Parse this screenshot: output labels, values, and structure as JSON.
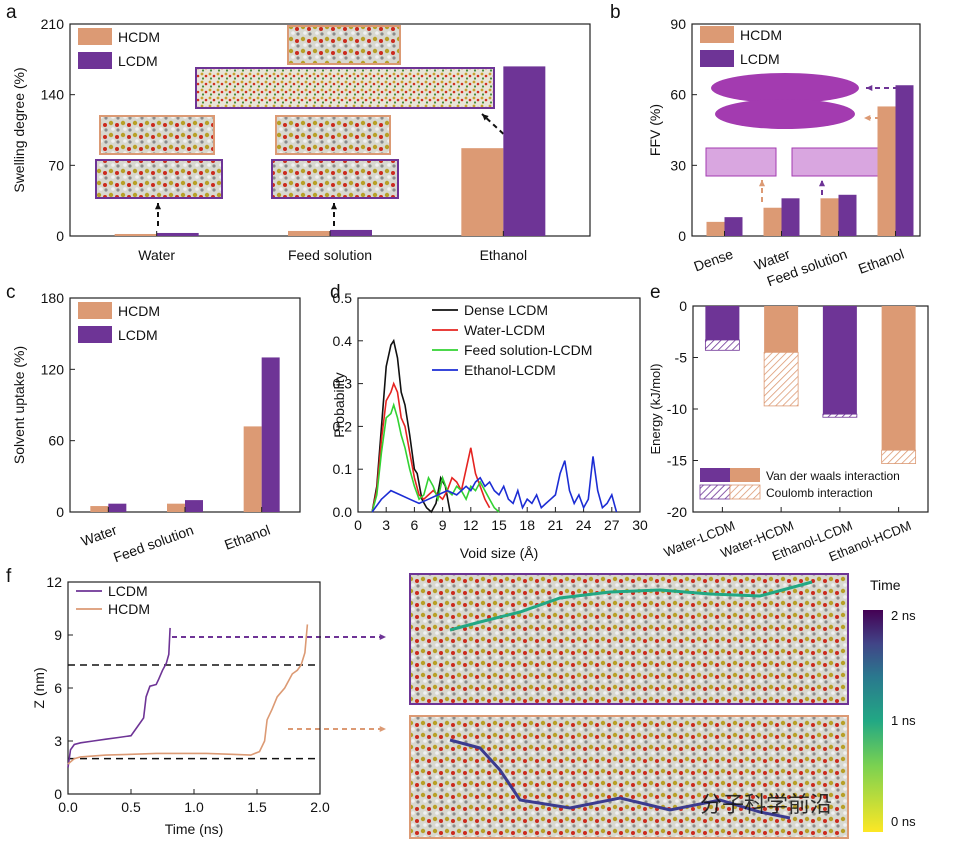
{
  "colors": {
    "hcdm": "#dc9a74",
    "lcdm": "#6e3496",
    "dense": "#111111",
    "water": "#e52421",
    "feed": "#32d232",
    "ethanol": "#1c2dd4"
  },
  "chart_data": [
    {
      "id": "a",
      "type": "bar",
      "ylabel": "Swelling degree (%)",
      "yticks": [
        "0",
        "70",
        "140",
        "210"
      ],
      "ylim": [
        0,
        210
      ],
      "categories": [
        "Water",
        "Feed solution",
        "Ethanol"
      ],
      "series": [
        {
          "name": "HCDM",
          "values": [
            2,
            5,
            87
          ]
        },
        {
          "name": "LCDM",
          "values": [
            3,
            6,
            168
          ]
        }
      ],
      "legend": [
        "HCDM",
        "LCDM"
      ]
    },
    {
      "id": "b",
      "type": "bar",
      "ylabel": "FFV (%)",
      "yticks": [
        "0",
        "30",
        "60",
        "90"
      ],
      "ylim": [
        0,
        90
      ],
      "categories": [
        "Dense",
        "Water",
        "Feed solution",
        "Ethanol"
      ],
      "series": [
        {
          "name": "HCDM",
          "values": [
            6,
            12,
            16,
            55
          ]
        },
        {
          "name": "LCDM",
          "values": [
            8,
            16,
            17.5,
            64
          ]
        }
      ],
      "legend": [
        "HCDM",
        "LCDM"
      ]
    },
    {
      "id": "c",
      "type": "bar",
      "ylabel": "Solvent uptake (%)",
      "yticks": [
        "0",
        "60",
        "120",
        "180"
      ],
      "ylim": [
        0,
        180
      ],
      "categories": [
        "Water",
        "Feed solution",
        "Ethanol"
      ],
      "series": [
        {
          "name": "HCDM",
          "values": [
            5,
            7,
            72
          ]
        },
        {
          "name": "LCDM",
          "values": [
            7,
            10,
            130
          ]
        }
      ],
      "legend": [
        "HCDM",
        "LCDM"
      ]
    },
    {
      "id": "d",
      "type": "line",
      "xlabel": "Void size (Å)",
      "ylabel": "Probability",
      "xticks": [
        "0",
        "3",
        "6",
        "9",
        "12",
        "15",
        "18",
        "21",
        "24",
        "27",
        "30"
      ],
      "xlim": [
        0,
        30
      ],
      "yticks": [
        "0.0",
        "0.1",
        "0.2",
        "0.3",
        "0.4",
        "0.5"
      ],
      "ylim": [
        0,
        0.5
      ],
      "series": [
        {
          "name": "Dense LCDM",
          "x": [
            1.5,
            2,
            2.5,
            3,
            3.5,
            3.8,
            4.2,
            4.6,
            5,
            5.5,
            6,
            6.3,
            6.8,
            7.3,
            7.8,
            8.3,
            8.8,
            9.3,
            9.8
          ],
          "y": [
            0,
            0.06,
            0.2,
            0.34,
            0.39,
            0.4,
            0.36,
            0.28,
            0.25,
            0.18,
            0.1,
            0.09,
            0.03,
            0.01,
            0.0,
            0.02,
            0.08,
            0.06,
            0.0
          ]
        },
        {
          "name": "Water-LCDM",
          "x": [
            1.5,
            2,
            2.5,
            3,
            3.5,
            3.8,
            4.2,
            4.6,
            5,
            5.5,
            6,
            6.5,
            7,
            7.5,
            8,
            8.5,
            9,
            9.5,
            10,
            10.5,
            11,
            11.5,
            12,
            12.5,
            13,
            13.5,
            14
          ],
          "y": [
            0,
            0.05,
            0.17,
            0.26,
            0.28,
            0.3,
            0.28,
            0.22,
            0.2,
            0.14,
            0.08,
            0.04,
            0.03,
            0.04,
            0.05,
            0.04,
            0.03,
            0.05,
            0.08,
            0.07,
            0.05,
            0.1,
            0.15,
            0.09,
            0.06,
            0.03,
            0.01
          ]
        },
        {
          "name": "Feed solution-LCDM",
          "x": [
            1.5,
            2,
            2.5,
            3,
            3.5,
            3.8,
            4.2,
            4.6,
            5,
            5.5,
            6,
            6.5,
            7,
            7.5,
            8,
            8.5,
            9,
            9.5,
            10,
            10.5,
            11,
            11.5,
            12,
            12.5,
            13,
            13.5,
            14,
            14.5,
            15
          ],
          "y": [
            0,
            0.04,
            0.14,
            0.22,
            0.23,
            0.25,
            0.22,
            0.18,
            0.15,
            0.1,
            0.06,
            0.03,
            0.04,
            0.08,
            0.06,
            0.03,
            0.08,
            0.05,
            0.04,
            0.06,
            0.05,
            0.03,
            0.06,
            0.05,
            0.07,
            0.05,
            0.03,
            0.01,
            0.0
          ]
        },
        {
          "name": "Ethanol-LCDM",
          "x": [
            1.5,
            2.5,
            3.5,
            4.5,
            5.5,
            6.5,
            7.5,
            8.5,
            9.5,
            10.5,
            11.5,
            12,
            12.5,
            13,
            13.5,
            14,
            14.5,
            15,
            15.5,
            16,
            16.5,
            17,
            17.5,
            18,
            18.5,
            19,
            19.5,
            20,
            20.5,
            21,
            21.5,
            22,
            22.5,
            23,
            23.5,
            24,
            24.5,
            25,
            25.5,
            26,
            26.5,
            27,
            27.5
          ],
          "y": [
            0,
            0.03,
            0.05,
            0.04,
            0.03,
            0.02,
            0.03,
            0.04,
            0.05,
            0.04,
            0.06,
            0.05,
            0.07,
            0.08,
            0.06,
            0.07,
            0.05,
            0.04,
            0.06,
            0.03,
            0.02,
            0.05,
            0.01,
            0.03,
            0.02,
            0.04,
            0.01,
            0.02,
            0.03,
            0.04,
            0.09,
            0.12,
            0.05,
            0.02,
            0.04,
            0.01,
            0.03,
            0.13,
            0.05,
            0.01,
            0.02,
            0.04,
            0.0
          ]
        }
      ]
    },
    {
      "id": "e",
      "type": "bar",
      "ylabel": "Energy (kJ/mol)",
      "yticks": [
        "0",
        "-5",
        "-10",
        "-15",
        "-20"
      ],
      "ylim": [
        -20,
        0
      ],
      "categories": [
        "Water-LCDM",
        "Water-HCDM",
        "Ethanol-LCDM",
        "Ethanol-HCDM"
      ],
      "series": [
        {
          "name": "Van der waals interaction",
          "values": [
            -3.3,
            -4.5,
            -10.5,
            -14.0
          ]
        },
        {
          "name": "Coulomb interaction",
          "values": [
            -1.0,
            -5.2,
            -0.3,
            -1.3
          ]
        }
      ],
      "legend": [
        "Van der waals interaction",
        "Coulomb interaction"
      ]
    },
    {
      "id": "f",
      "type": "line",
      "xlabel": "Time (ns)",
      "ylabel": "Z (nm)",
      "xticks": [
        "0.0",
        "0.5",
        "1.0",
        "1.5",
        "2.0"
      ],
      "xlim": [
        0,
        2.0
      ],
      "yticks": [
        "0",
        "3",
        "6",
        "9",
        "12"
      ],
      "ylim": [
        0,
        12
      ],
      "hlines": [
        7.3,
        2.0
      ],
      "series": [
        {
          "name": "LCDM",
          "x": [
            0,
            0.02,
            0.05,
            0.1,
            0.2,
            0.3,
            0.4,
            0.5,
            0.55,
            0.6,
            0.62,
            0.65,
            0.7,
            0.72,
            0.75,
            0.78,
            0.8,
            0.81
          ],
          "y": [
            1.5,
            2.5,
            2.8,
            2.9,
            3.0,
            3.1,
            3.2,
            3.3,
            3.8,
            4.3,
            5.5,
            6.1,
            6.2,
            6.5,
            7.0,
            7.4,
            7.9,
            9.4
          ]
        },
        {
          "name": "HCDM",
          "x": [
            0,
            0.05,
            0.1,
            0.3,
            0.5,
            0.7,
            0.9,
            1.1,
            1.3,
            1.45,
            1.52,
            1.56,
            1.58,
            1.62,
            1.66,
            1.72,
            1.78,
            1.82,
            1.85,
            1.88,
            1.9
          ],
          "y": [
            1.7,
            2.0,
            2.1,
            2.2,
            2.25,
            2.3,
            2.3,
            2.3,
            2.25,
            2.2,
            2.4,
            3.0,
            4.2,
            4.8,
            5.5,
            6.0,
            6.8,
            7.0,
            7.3,
            8.0,
            9.6
          ]
        }
      ]
    }
  ],
  "panels": {
    "a": "a",
    "b": "b",
    "c": "c",
    "d": "d",
    "e": "e",
    "f": "f"
  },
  "colorbar": {
    "title": "Time",
    "top": "2 ns",
    "mid": "1 ns",
    "bottom": "0 ns"
  },
  "watermark": "分子科学前沿"
}
